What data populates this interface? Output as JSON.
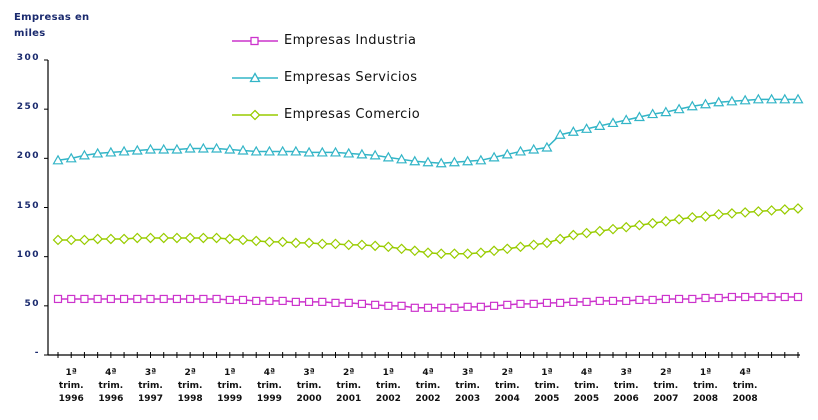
{
  "chart_data": {
    "type": "line",
    "ylabel": "Empresas en miles",
    "ylim": [
      0,
      300
    ],
    "yticks": [
      "300",
      "250",
      "200",
      "150",
      "100",
      "50",
      "-"
    ],
    "ytick_values": [
      300,
      250,
      200,
      150,
      100,
      50,
      0
    ],
    "x_labels": [
      {
        "line1": "1ª",
        "line2": "trim.",
        "line3": "1996"
      },
      {
        "line1": "4ª",
        "line2": "trim.",
        "line3": "1996"
      },
      {
        "line1": "3ª",
        "line2": "trim.",
        "line3": "1997"
      },
      {
        "line1": "2ª",
        "line2": "trim.",
        "line3": "1998"
      },
      {
        "line1": "1ª",
        "line2": "trim.",
        "line3": "1999"
      },
      {
        "line1": "4ª",
        "line2": "trim.",
        "line3": "1999"
      },
      {
        "line1": "3ª",
        "line2": "trim.",
        "line3": "2000"
      },
      {
        "line1": "2ª",
        "line2": "trim.",
        "line3": "2001"
      },
      {
        "line1": "1ª",
        "line2": "trim.",
        "line3": "2002"
      },
      {
        "line1": "4ª",
        "line2": "trim.",
        "line3": "2002"
      },
      {
        "line1": "3ª",
        "line2": "trim.",
        "line3": "2003"
      },
      {
        "line1": "2ª",
        "line2": "trim.",
        "line3": "2004"
      },
      {
        "line1": "1ª",
        "line2": "trim.",
        "line3": "2005"
      },
      {
        "line1": "4ª",
        "line2": "trim.",
        "line3": "2005"
      },
      {
        "line1": "3ª",
        "line2": "trim.",
        "line3": "2006"
      },
      {
        "line1": "2ª",
        "line2": "trim.",
        "line3": "2007"
      },
      {
        "line1": "1ª",
        "line2": "trim.",
        "line3": "2008"
      },
      {
        "line1": "4ª",
        "line2": "trim.",
        "line3": "2008"
      }
    ],
    "legend_position": "top-center",
    "grid": false,
    "series": [
      {
        "name": "Empresas Industria",
        "color": "#cc33cc",
        "marker": "square",
        "values": [
          57,
          57,
          57,
          57,
          57,
          57,
          57,
          57,
          57,
          57,
          57,
          57,
          57,
          56,
          56,
          55,
          55,
          55,
          54,
          54,
          54,
          53,
          53,
          52,
          51,
          50,
          50,
          48,
          48,
          48,
          48,
          49,
          49,
          50,
          51,
          52,
          52,
          53,
          53,
          54,
          54,
          55,
          55,
          55,
          56,
          56,
          57,
          57,
          57,
          58,
          58,
          59,
          59,
          59,
          59,
          59,
          59
        ]
      },
      {
        "name": "Empresas Servicios",
        "color": "#33b5c7",
        "marker": "triangle",
        "values": [
          198,
          200,
          203,
          205,
          206,
          207,
          208,
          209,
          209,
          209,
          210,
          210,
          210,
          209,
          208,
          207,
          207,
          207,
          207,
          206,
          206,
          206,
          205,
          204,
          203,
          201,
          199,
          197,
          196,
          195,
          196,
          197,
          198,
          201,
          204,
          207,
          209,
          211,
          224,
          227,
          230,
          233,
          236,
          239,
          242,
          245,
          247,
          250,
          253,
          255,
          257,
          258,
          259,
          260,
          260,
          260,
          260
        ]
      },
      {
        "name": "Empresas Comercio",
        "color": "#99cc00",
        "marker": "diamond",
        "values": [
          117,
          117,
          117,
          118,
          118,
          118,
          119,
          119,
          119,
          119,
          119,
          119,
          119,
          118,
          117,
          116,
          115,
          115,
          114,
          114,
          113,
          113,
          112,
          112,
          111,
          110,
          108,
          106,
          104,
          103,
          103,
          103,
          104,
          106,
          108,
          110,
          112,
          114,
          118,
          122,
          124,
          126,
          128,
          130,
          132,
          134,
          136,
          138,
          140,
          141,
          143,
          144,
          145,
          146,
          147,
          148,
          149
        ]
      }
    ]
  }
}
